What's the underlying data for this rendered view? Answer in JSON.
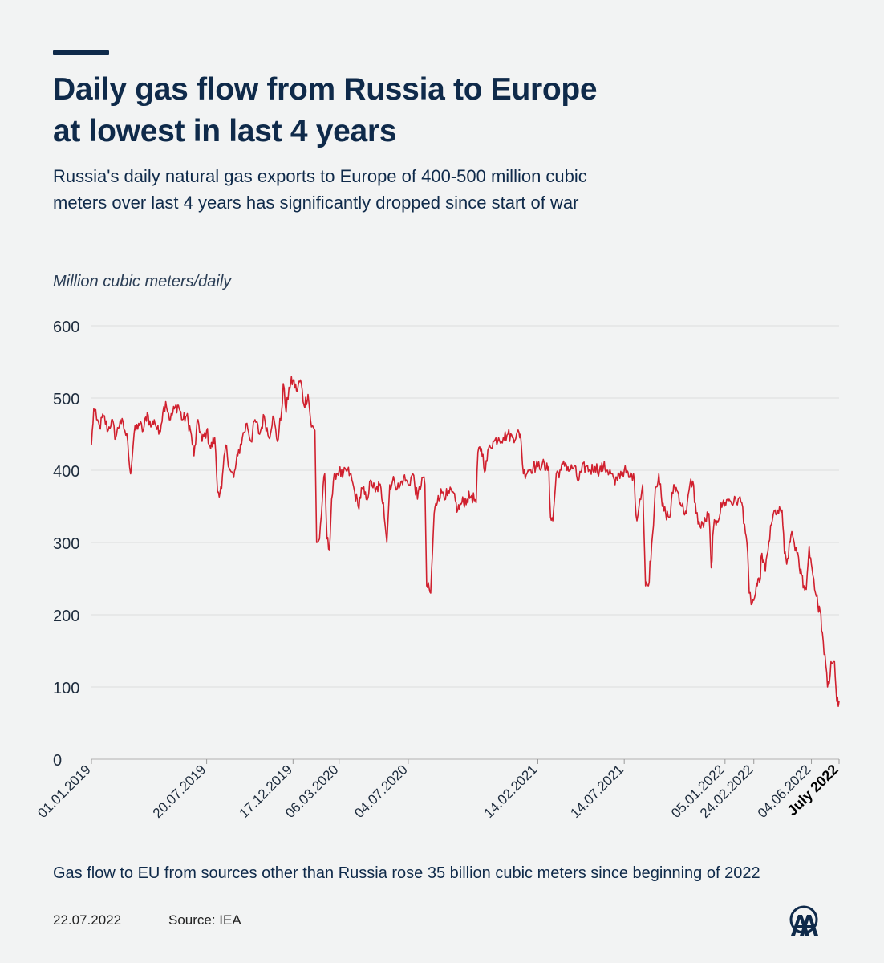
{
  "header": {
    "title_line1": "Daily gas flow from Russia to Europe",
    "title_line2": "at lowest in last 4 years",
    "subtitle_line1": "Russia's daily natural gas exports to Europe of 400-500 million cubic",
    "subtitle_line2": "meters over last 4 years has significantly dropped since start of war"
  },
  "footer": {
    "note": "Gas flow to EU from sources other than Russia rose 35 billion cubic meters since beginning of 2022",
    "date": "22.07.2022",
    "source": "Source: IEA",
    "logo_icon": "aa-logo-icon"
  },
  "colors": {
    "line": "#d0202e",
    "text": "#0f2a4a",
    "background": "#f2f3f3",
    "grid": "#dcdcdc"
  },
  "chart_data": {
    "type": "line",
    "title": "Daily gas flow from Russia to Europe at lowest in last 4 years",
    "ylabel": "Million cubic meters/daily",
    "xlabel": "",
    "ylim": [
      0,
      600
    ],
    "yticks": [
      0,
      100,
      200,
      300,
      400,
      500,
      600
    ],
    "xlim": [
      "2019-01-01",
      "2022-07-22"
    ],
    "grid": "horizontal",
    "xtick_labels": [
      {
        "date": "2019-01-01",
        "label": "01.01.2019",
        "bold": false
      },
      {
        "date": "2019-07-20",
        "label": "20.07.2019",
        "bold": false
      },
      {
        "date": "2019-12-17",
        "label": "17.12.2019",
        "bold": false
      },
      {
        "date": "2020-03-06",
        "label": "06.03.2020",
        "bold": false
      },
      {
        "date": "2020-07-04",
        "label": "04.07.2020",
        "bold": false
      },
      {
        "date": "2021-02-14",
        "label": "14.02.2021",
        "bold": false
      },
      {
        "date": "2021-07-14",
        "label": "14.07.2021",
        "bold": false
      },
      {
        "date": "2022-01-05",
        "label": "05.01.2022",
        "bold": false
      },
      {
        "date": "2022-02-24",
        "label": "24.02.2022",
        "bold": false
      },
      {
        "date": "2022-06-04",
        "label": "04.06.2022",
        "bold": false
      },
      {
        "date": "2022-07-22",
        "label": "July 2022",
        "bold": true
      }
    ],
    "series": [
      {
        "color": "#d0202e",
        "points": [
          [
            "2019-01-01",
            435
          ],
          [
            "2019-01-05",
            485
          ],
          [
            "2019-01-10",
            470
          ],
          [
            "2019-01-15",
            460
          ],
          [
            "2019-01-22",
            475
          ],
          [
            "2019-01-30",
            455
          ],
          [
            "2019-02-05",
            470
          ],
          [
            "2019-02-12",
            445
          ],
          [
            "2019-02-20",
            470
          ],
          [
            "2019-02-28",
            455
          ],
          [
            "2019-03-05",
            440
          ],
          [
            "2019-03-10",
            395
          ],
          [
            "2019-03-16",
            450
          ],
          [
            "2019-03-24",
            465
          ],
          [
            "2019-04-01",
            455
          ],
          [
            "2019-04-08",
            480
          ],
          [
            "2019-04-14",
            460
          ],
          [
            "2019-04-20",
            470
          ],
          [
            "2019-04-28",
            450
          ],
          [
            "2019-05-05",
            480
          ],
          [
            "2019-05-10",
            495
          ],
          [
            "2019-05-18",
            470
          ],
          [
            "2019-05-25",
            485
          ],
          [
            "2019-06-01",
            490
          ],
          [
            "2019-06-08",
            470
          ],
          [
            "2019-06-15",
            475
          ],
          [
            "2019-06-22",
            455
          ],
          [
            "2019-06-28",
            420
          ],
          [
            "2019-07-05",
            470
          ],
          [
            "2019-07-12",
            440
          ],
          [
            "2019-07-20",
            455
          ],
          [
            "2019-07-27",
            430
          ],
          [
            "2019-08-03",
            445
          ],
          [
            "2019-08-08",
            370
          ],
          [
            "2019-08-15",
            375
          ],
          [
            "2019-08-22",
            435
          ],
          [
            "2019-08-30",
            400
          ],
          [
            "2019-09-05",
            390
          ],
          [
            "2019-09-12",
            420
          ],
          [
            "2019-09-20",
            445
          ],
          [
            "2019-09-28",
            465
          ],
          [
            "2019-10-05",
            440
          ],
          [
            "2019-10-12",
            470
          ],
          [
            "2019-10-20",
            450
          ],
          [
            "2019-10-28",
            475
          ],
          [
            "2019-11-05",
            445
          ],
          [
            "2019-11-12",
            475
          ],
          [
            "2019-11-20",
            440
          ],
          [
            "2019-11-27",
            480
          ],
          [
            "2019-11-30",
            520
          ],
          [
            "2019-12-05",
            480
          ],
          [
            "2019-12-10",
            515
          ],
          [
            "2019-12-17",
            525
          ],
          [
            "2019-12-23",
            510
          ],
          [
            "2019-12-30",
            525
          ],
          [
            "2020-01-05",
            490
          ],
          [
            "2020-01-12",
            505
          ],
          [
            "2020-01-18",
            460
          ],
          [
            "2020-01-24",
            455
          ],
          [
            "2020-01-27",
            300
          ],
          [
            "2020-02-01",
            305
          ],
          [
            "2020-02-06",
            360
          ],
          [
            "2020-02-10",
            395
          ],
          [
            "2020-02-14",
            305
          ],
          [
            "2020-02-18",
            290
          ],
          [
            "2020-02-22",
            360
          ],
          [
            "2020-02-28",
            395
          ],
          [
            "2020-03-06",
            400
          ],
          [
            "2020-03-12",
            390
          ],
          [
            "2020-03-18",
            400
          ],
          [
            "2020-03-25",
            395
          ],
          [
            "2020-04-02",
            370
          ],
          [
            "2020-04-08",
            350
          ],
          [
            "2020-04-15",
            375
          ],
          [
            "2020-04-22",
            360
          ],
          [
            "2020-05-01",
            385
          ],
          [
            "2020-05-08",
            370
          ],
          [
            "2020-05-15",
            380
          ],
          [
            "2020-05-22",
            355
          ],
          [
            "2020-05-28",
            300
          ],
          [
            "2020-06-02",
            380
          ],
          [
            "2020-06-10",
            385
          ],
          [
            "2020-06-18",
            375
          ],
          [
            "2020-06-26",
            390
          ],
          [
            "2020-07-04",
            380
          ],
          [
            "2020-07-12",
            395
          ],
          [
            "2020-07-20",
            360
          ],
          [
            "2020-07-28",
            390
          ],
          [
            "2020-08-02",
            380
          ],
          [
            "2020-08-05",
            240
          ],
          [
            "2020-08-12",
            230
          ],
          [
            "2020-08-18",
            340
          ],
          [
            "2020-08-25",
            365
          ],
          [
            "2020-09-02",
            370
          ],
          [
            "2020-09-10",
            365
          ],
          [
            "2020-09-18",
            370
          ],
          [
            "2020-09-28",
            345
          ],
          [
            "2020-10-05",
            355
          ],
          [
            "2020-10-14",
            360
          ],
          [
            "2020-10-22",
            365
          ],
          [
            "2020-10-30",
            355
          ],
          [
            "2020-11-02",
            425
          ],
          [
            "2020-11-08",
            430
          ],
          [
            "2020-11-15",
            400
          ],
          [
            "2020-11-22",
            435
          ],
          [
            "2020-11-30",
            440
          ],
          [
            "2020-12-08",
            445
          ],
          [
            "2020-12-16",
            445
          ],
          [
            "2020-12-24",
            450
          ],
          [
            "2021-01-01",
            445
          ],
          [
            "2021-01-08",
            450
          ],
          [
            "2021-01-15",
            450
          ],
          [
            "2021-01-20",
            395
          ],
          [
            "2021-01-28",
            400
          ],
          [
            "2021-02-06",
            405
          ],
          [
            "2021-02-14",
            405
          ],
          [
            "2021-02-22",
            410
          ],
          [
            "2021-02-28",
            400
          ],
          [
            "2021-03-05",
            405
          ],
          [
            "2021-03-08",
            335
          ],
          [
            "2021-03-12",
            330
          ],
          [
            "2021-03-18",
            395
          ],
          [
            "2021-03-26",
            400
          ],
          [
            "2021-04-03",
            410
          ],
          [
            "2021-04-10",
            400
          ],
          [
            "2021-04-18",
            405
          ],
          [
            "2021-04-25",
            385
          ],
          [
            "2021-05-01",
            400
          ],
          [
            "2021-05-08",
            405
          ],
          [
            "2021-05-16",
            400
          ],
          [
            "2021-05-24",
            405
          ],
          [
            "2021-06-01",
            400
          ],
          [
            "2021-06-08",
            405
          ],
          [
            "2021-06-15",
            400
          ],
          [
            "2021-06-22",
            395
          ],
          [
            "2021-06-28",
            380
          ],
          [
            "2021-07-05",
            395
          ],
          [
            "2021-07-14",
            400
          ],
          [
            "2021-07-22",
            390
          ],
          [
            "2021-07-30",
            395
          ],
          [
            "2021-08-05",
            330
          ],
          [
            "2021-08-10",
            360
          ],
          [
            "2021-08-15",
            380
          ],
          [
            "2021-08-20",
            240
          ],
          [
            "2021-08-25",
            240
          ],
          [
            "2021-09-01",
            310
          ],
          [
            "2021-09-06",
            375
          ],
          [
            "2021-09-12",
            395
          ],
          [
            "2021-09-18",
            350
          ],
          [
            "2021-09-24",
            340
          ],
          [
            "2021-10-01",
            335
          ],
          [
            "2021-10-08",
            380
          ],
          [
            "2021-10-15",
            370
          ],
          [
            "2021-10-22",
            350
          ],
          [
            "2021-10-30",
            340
          ],
          [
            "2021-11-05",
            380
          ],
          [
            "2021-11-10",
            385
          ],
          [
            "2021-11-16",
            340
          ],
          [
            "2021-11-24",
            320
          ],
          [
            "2021-12-02",
            330
          ],
          [
            "2021-12-08",
            340
          ],
          [
            "2021-12-12",
            265
          ],
          [
            "2021-12-16",
            320
          ],
          [
            "2021-12-22",
            330
          ],
          [
            "2022-01-01",
            355
          ],
          [
            "2022-01-05",
            355
          ],
          [
            "2022-01-12",
            360
          ],
          [
            "2022-01-20",
            355
          ],
          [
            "2022-01-28",
            360
          ],
          [
            "2022-02-03",
            355
          ],
          [
            "2022-02-08",
            325
          ],
          [
            "2022-02-12",
            300
          ],
          [
            "2022-02-16",
            230
          ],
          [
            "2022-02-21",
            215
          ],
          [
            "2022-02-24",
            220
          ],
          [
            "2022-03-02",
            240
          ],
          [
            "2022-03-06",
            245
          ],
          [
            "2022-03-10",
            285
          ],
          [
            "2022-03-16",
            260
          ],
          [
            "2022-03-22",
            300
          ],
          [
            "2022-03-28",
            330
          ],
          [
            "2022-04-02",
            345
          ],
          [
            "2022-04-08",
            340
          ],
          [
            "2022-04-14",
            345
          ],
          [
            "2022-04-18",
            285
          ],
          [
            "2022-04-22",
            270
          ],
          [
            "2022-04-28",
            300
          ],
          [
            "2022-05-01",
            315
          ],
          [
            "2022-05-05",
            300
          ],
          [
            "2022-05-10",
            285
          ],
          [
            "2022-05-14",
            265
          ],
          [
            "2022-05-18",
            255
          ],
          [
            "2022-05-22",
            240
          ],
          [
            "2022-05-26",
            235
          ],
          [
            "2022-05-31",
            295
          ],
          [
            "2022-06-04",
            270
          ],
          [
            "2022-06-08",
            250
          ],
          [
            "2022-06-11",
            230
          ],
          [
            "2022-06-15",
            215
          ],
          [
            "2022-06-19",
            205
          ],
          [
            "2022-06-23",
            175
          ],
          [
            "2022-06-26",
            145
          ],
          [
            "2022-06-29",
            130
          ],
          [
            "2022-07-02",
            100
          ],
          [
            "2022-07-05",
            105
          ],
          [
            "2022-07-08",
            135
          ],
          [
            "2022-07-12",
            135
          ],
          [
            "2022-07-14",
            135
          ],
          [
            "2022-07-18",
            80
          ],
          [
            "2022-07-22",
            80
          ]
        ]
      }
    ]
  }
}
